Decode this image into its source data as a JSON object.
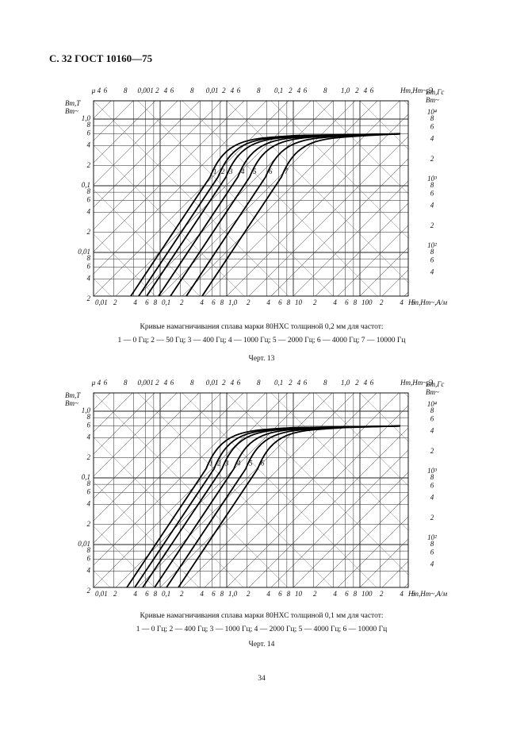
{
  "header": {
    "title": "С. 32 ГОСТ 10160—75"
  },
  "figures": [
    {
      "top_labels": [
        "μ",
        "4",
        "6",
        "8",
        "0,001",
        "2",
        "4",
        "6",
        "8",
        "0,01",
        "2",
        "4",
        "6",
        "8",
        "0,1",
        "2",
        "4",
        "6",
        "8",
        "1,0",
        "2",
        "4",
        "6",
        "Hm,Hm~,Э"
      ],
      "y_title": [
        "Bm,T",
        "Bm~"
      ],
      "y_labels": [
        "1,0",
        "8",
        "6",
        "4",
        "2",
        "0,1",
        "8",
        "6",
        "4",
        "2",
        "0,01",
        "8",
        "6",
        "4",
        "2"
      ],
      "right_title": [
        "Bm,Гс",
        "Bm~"
      ],
      "right_labels": [
        "10⁴",
        "8",
        "6",
        "4",
        "2",
        "10³",
        "8",
        "6",
        "4",
        "2",
        "10²",
        "8",
        "6",
        "4"
      ],
      "x_labels": [
        "0,01",
        "2",
        "4",
        "6",
        "8",
        "0,1",
        "2",
        "4",
        "6",
        "8",
        "1,0",
        "2",
        "4",
        "6",
        "8",
        "10",
        "2",
        "4",
        "6",
        "8",
        "100",
        "2",
        "4",
        "6"
      ],
      "x_title": "Hm,Hm~,A/м",
      "curve_labels": [
        "1",
        "2",
        "3",
        "4",
        "5",
        "6",
        "7"
      ],
      "caption": [
        "Кривые намагничивания сплава марки 80НХС толщиной 0,2 мм для частот:",
        "1 — 0 Гц; 2 — 50 Гц; 3 — 400 Гц; 4 — 1000 Гц; 5 — 2000 Гц; 6 — 4000 Гц; 7 — 10000 Гц"
      ],
      "label": "Черт. 13"
    },
    {
      "top_labels": [
        "μ",
        "4",
        "6",
        "8",
        "0,001",
        "2",
        "4",
        "6",
        "8",
        "0,01",
        "2",
        "4",
        "6",
        "8",
        "0,1",
        "2",
        "4",
        "6",
        "8",
        "1,0",
        "2",
        "4",
        "6",
        "Hm,Hm~,Э"
      ],
      "y_title": [
        "Bm,T",
        "Bm~"
      ],
      "y_labels": [
        "1,0",
        "8",
        "6",
        "4",
        "2",
        "0,1",
        "8",
        "6",
        "4",
        "2",
        "0,01",
        "8",
        "6",
        "4",
        "2"
      ],
      "right_title": [
        "Bm,Гс",
        "Bm~"
      ],
      "right_labels": [
        "10⁴",
        "8",
        "6",
        "4",
        "2",
        "10³",
        "8",
        "6",
        "4",
        "2",
        "10²",
        "8",
        "6",
        "4"
      ],
      "x_labels": [
        "0,01",
        "2",
        "4",
        "6",
        "8",
        "0,1",
        "2",
        "4",
        "6",
        "8",
        "1,0",
        "2",
        "4",
        "6",
        "8",
        "10",
        "2",
        "4",
        "6",
        "8",
        "100",
        "2",
        "4",
        "6"
      ],
      "x_title": "Hm,Hm~,A/м",
      "curve_labels": [
        "1",
        "2",
        "3",
        "4",
        "5",
        "6"
      ],
      "caption": [
        "Кривые намагничивания сплава марки 80НХС толщиной 0,1 мм для частот:",
        "1 — 0 Гц; 2 — 400 Гц; 3 — 1000 Гц; 4 — 2000 Гц; 5 — 4000 Гц; 6 — 10000 Гц"
      ],
      "label": "Черт. 14"
    }
  ],
  "page_number": "34"
}
